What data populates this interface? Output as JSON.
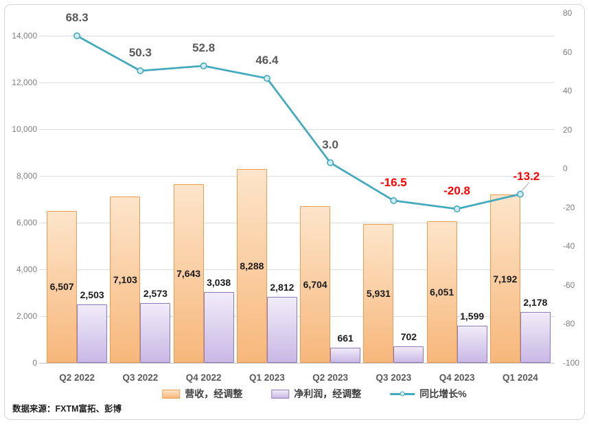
{
  "source_note": "数据来源：FXTM富拓、彭博",
  "colors": {
    "gridline": "#dcdcdc",
    "axis_line": "#bfbfbf",
    "tick_label": "#7f7f7f",
    "category_label": "#595959",
    "bar_label": "#1a1a1a",
    "frame_border": "#d6d6d6",
    "leader_line": "#a6a6a6"
  },
  "chart_data": {
    "type": "combo",
    "subtypes": [
      "bar",
      "bar",
      "line"
    ],
    "grid": true,
    "legend_position": "bottom",
    "categories": [
      "Q2 2022",
      "Q3 2022",
      "Q4 2022",
      "Q1 2023",
      "Q2 2023",
      "Q3 2023",
      "Q4 2023",
      "Q1 2024"
    ],
    "series": [
      {
        "name": "营收，经调整",
        "type": "bar",
        "axis": "primary",
        "values": [
          6507,
          7103,
          7643,
          8288,
          6704,
          5931,
          6051,
          7192
        ],
        "labels": [
          "6,507",
          "7,103",
          "7,643",
          "8,288",
          "6,704",
          "5,931",
          "6,051",
          "7,192"
        ],
        "fill_top": "#fde5ca",
        "fill_bottom": "#f7b77b",
        "border": "#eb9b50"
      },
      {
        "name": "净利润，经调整",
        "type": "bar",
        "axis": "primary",
        "values": [
          2503,
          2573,
          3038,
          2812,
          661,
          702,
          1599,
          2178
        ],
        "labels": [
          "2,503",
          "2,573",
          "3,038",
          "2,812",
          "661",
          "702",
          "1,599",
          "2,178"
        ],
        "fill_top": "#f0ecf8",
        "fill_bottom": "#c9b8e6",
        "border": "#8b79b5"
      },
      {
        "name": "同比增长%",
        "type": "line",
        "axis": "secondary",
        "values": [
          68.3,
          50.3,
          52.8,
          46.4,
          3.0,
          -16.5,
          -20.8,
          -13.2
        ],
        "labels": [
          "68.3",
          "50.3",
          "52.8",
          "46.4",
          "3.0",
          "-16.5",
          "-20.8",
          "-13.2"
        ],
        "color": "#43a9bc",
        "marker_fill": "#d2ecf3",
        "label_color_positive": "#595959",
        "label_color_negative": "#ff0000"
      }
    ],
    "primary_axis": {
      "min": 0,
      "max": 14000,
      "step": 2000,
      "ticks": [
        "0",
        "2,000",
        "4,000",
        "6,000",
        "8,000",
        "10,000",
        "12,000",
        "14,000"
      ]
    },
    "secondary_axis": {
      "min": -100,
      "max": 80,
      "step": 20,
      "ticks": [
        "80",
        "60",
        "40",
        "20",
        "0",
        "-20",
        "-40",
        "-60",
        "-80",
        "-100"
      ]
    }
  }
}
